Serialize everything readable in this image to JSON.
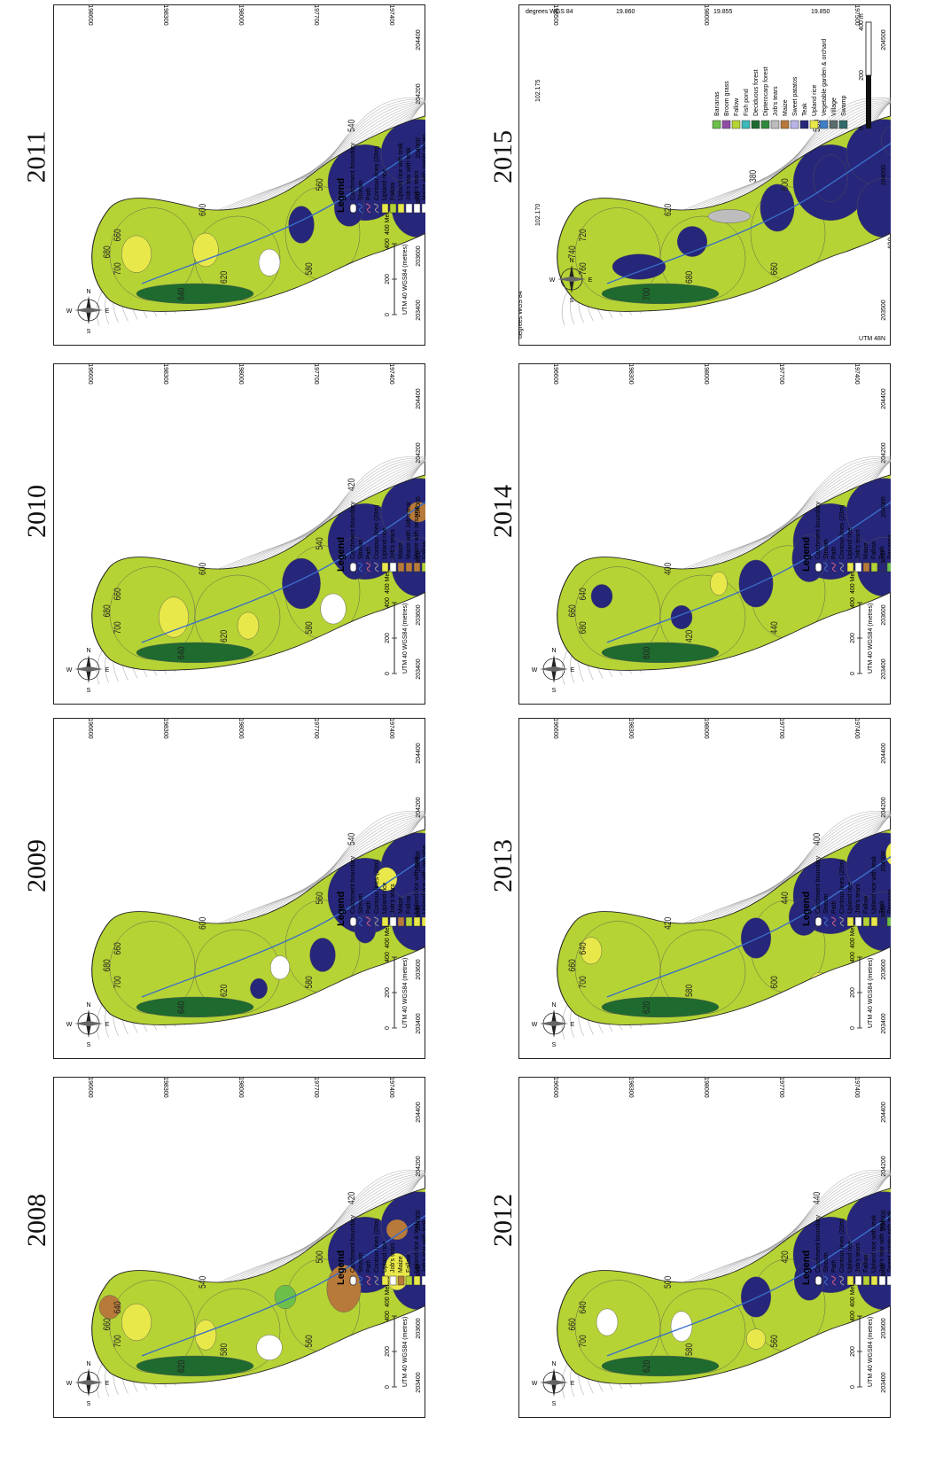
{
  "colors": {
    "fallow": "#b5d334",
    "upland_rice": "#e8e84a",
    "teak": "#26267a",
    "evergreen": "#1f6a2e",
    "dipterocarp": "#2e8a3a",
    "bananas": "#6cc04a",
    "orchard": "#f39c1f",
    "vegetable_garden": "#3f7fc8",
    "broom_grass": "#8e4ca3",
    "fish_pond": "#3cb8b8",
    "village": "#1f8a8a",
    "maize": "#b87a3a",
    "jobs_tears": "#ffffff",
    "swamp": "#2f6b6b",
    "contour": "#9a9a9a",
    "stream": "#3a6ec8",
    "path": "#d06080"
  },
  "panels": [
    {
      "id": "2008",
      "year": "2008",
      "scale_label": "400 Meters",
      "scale_ticks": [
        "0",
        "200",
        "400"
      ],
      "projection": "UTM 40 WGS84 (metres)",
      "compass": [
        "N",
        "E",
        "S",
        "W"
      ],
      "x_ticks": [
        "203400",
        "203600",
        "203800",
        "204000",
        "204200",
        "204400"
      ],
      "y_ticks": [
        "2196600",
        "2198300",
        "2198000",
        "2197700",
        "2197400"
      ],
      "contour_labels": [
        "700",
        "660",
        "640",
        "620",
        "580",
        "560",
        "540",
        "500",
        "420",
        "440",
        "400"
      ],
      "legend_title": "Legend",
      "legend": [
        {
          "label": "Catchment boundary",
          "sym": "boundary"
        },
        {
          "label": "Stream",
          "sym": "stream"
        },
        {
          "label": "Path",
          "sym": "path"
        },
        {
          "label": "Contour lines (20m)",
          "sym": "contour"
        },
        {
          "label": "Upland rice",
          "sym": "upland_rice"
        },
        {
          "label": "Job's tears",
          "sym": "jobs_tears"
        },
        {
          "label": "Maize",
          "sym": "maize"
        },
        {
          "label": "Fallow",
          "sym": "fallow"
        },
        {
          "label": "Upland rice & teak",
          "sym": "upland_rice"
        },
        {
          "label": "Job's tear with teak",
          "sym": "jobs_tears"
        },
        {
          "label": "Maize with teak",
          "sym": "maize"
        },
        {
          "label": "Teak",
          "sym": "teak"
        },
        {
          "label": "Bananas",
          "sym": "bananas"
        },
        {
          "label": "Vegetable garden",
          "sym": "vegetable_garden"
        },
        {
          "label": "Sweet potato",
          "sym": "broom_grass"
        },
        {
          "label": "Orchard",
          "sym": "orchard"
        },
        {
          "label": "Evergreen/deciduous forest",
          "sym": "evergreen"
        },
        {
          "label": "Dipterocarp forest",
          "sym": "dipterocarp"
        },
        {
          "label": "Fish pond",
          "sym": "fish_pond"
        },
        {
          "label": "Village",
          "sym": "village"
        }
      ]
    },
    {
      "id": "2009",
      "year": "2009",
      "scale_label": "400 Meters",
      "scale_ticks": [
        "0",
        "200",
        "400"
      ],
      "projection": "UTM 40 WGS84 (metres)",
      "compass": [
        "N",
        "E",
        "S",
        "W"
      ],
      "x_ticks": [
        "203400",
        "203600",
        "203800",
        "204000",
        "204200",
        "204400"
      ],
      "y_ticks": [
        "2196600",
        "2198300",
        "2198000",
        "2197700",
        "2197400"
      ],
      "contour_labels": [
        "700",
        "680",
        "660",
        "640",
        "620",
        "580",
        "600",
        "560",
        "540",
        "420",
        "440",
        "400"
      ],
      "legend_title": "Legend",
      "legend": [
        {
          "label": "Catchment boundary",
          "sym": "boundary"
        },
        {
          "label": "Stream",
          "sym": "stream"
        },
        {
          "label": "Path",
          "sym": "path"
        },
        {
          "label": "Contour lines (20m)",
          "sym": "contour"
        },
        {
          "label": "Upland rice",
          "sym": "upland_rice"
        },
        {
          "label": "Job's tears",
          "sym": "jobs_tears"
        },
        {
          "label": "Maize",
          "sym": "maize"
        },
        {
          "label": "Fallow",
          "sym": "fallow"
        },
        {
          "label": "Upland rice with teak",
          "sym": "upland_rice"
        },
        {
          "label": "Upland rice with jatropha",
          "sym": "upland_rice"
        },
        {
          "label": "Job's tear with teak",
          "sym": "jobs_tears"
        },
        {
          "label": "Maize with sweet potato",
          "sym": "jobs_tears"
        },
        {
          "label": "Teak",
          "sym": "teak"
        },
        {
          "label": "Bananas",
          "sym": "bananas"
        },
        {
          "label": "Vegetable garden",
          "sym": "vegetable_garden"
        },
        {
          "label": "Broom grass",
          "sym": "broom_grass"
        },
        {
          "label": "Orchard",
          "sym": "orchard"
        },
        {
          "label": "Evergreen/deciduous forest",
          "sym": "evergreen"
        },
        {
          "label": "Dipterocarp forest",
          "sym": "dipterocarp"
        },
        {
          "label": "Fish pond",
          "sym": "fish_pond"
        },
        {
          "label": "Village",
          "sym": "village"
        }
      ]
    },
    {
      "id": "2010",
      "year": "2010",
      "scale_label": "400 Meters",
      "scale_ticks": [
        "0",
        "200",
        "400"
      ],
      "projection": "UTM 40 WGS84 (metres)",
      "compass": [
        "N",
        "E",
        "S",
        "W"
      ],
      "x_ticks": [
        "203400",
        "203600",
        "203800",
        "204000",
        "204200",
        "204400"
      ],
      "y_ticks": [
        "2196600",
        "2198300",
        "2198000",
        "2197700",
        "2197400"
      ],
      "contour_labels": [
        "700",
        "680",
        "660",
        "640",
        "620",
        "580",
        "600",
        "540",
        "420",
        "440",
        "400"
      ],
      "legend_title": "Legend",
      "legend": [
        {
          "label": "Catchment boundary",
          "sym": "boundary"
        },
        {
          "label": "Stream",
          "sym": "stream"
        },
        {
          "label": "Path",
          "sym": "path"
        },
        {
          "label": "Contour lines (20m)",
          "sym": "contour"
        },
        {
          "label": "Upland rice",
          "sym": "upland_rice"
        },
        {
          "label": "Job's tears",
          "sym": "jobs_tears"
        },
        {
          "label": "Maize",
          "sym": "maize"
        },
        {
          "label": "Maize with Job's tear",
          "sym": "maize"
        },
        {
          "label": "Maize with sesame",
          "sym": "maize"
        },
        {
          "label": "Fallow",
          "sym": "fallow"
        },
        {
          "label": "Upland rice with teak",
          "sym": "upland_rice"
        },
        {
          "label": "Job's tear with teak",
          "sym": "jobs_tears"
        },
        {
          "label": "Maize with sweet potato",
          "sym": "jobs_tears"
        },
        {
          "label": "Teak",
          "sym": "teak"
        },
        {
          "label": "Bananas",
          "sym": "bananas"
        },
        {
          "label": "Vegetable garden",
          "sym": "vegetable_garden"
        },
        {
          "label": "Broom grass",
          "sym": "broom_grass"
        },
        {
          "label": "Orchard",
          "sym": "orchard"
        },
        {
          "label": "Evergreen/deciduous forest",
          "sym": "evergreen"
        },
        {
          "label": "Dipterocarp forest",
          "sym": "dipterocarp"
        },
        {
          "label": "Fish pond",
          "sym": "fish_pond"
        },
        {
          "label": "Village",
          "sym": "village"
        }
      ]
    },
    {
      "id": "2011",
      "year": "2011",
      "scale_label": "400 Meters",
      "scale_ticks": [
        "0",
        "200",
        "400"
      ],
      "projection": "UTM 40 WGS84 (metres)",
      "compass": [
        "N",
        "E",
        "S",
        "W"
      ],
      "x_ticks": [
        "203400",
        "203600",
        "203800",
        "204000",
        "204200",
        "204400"
      ],
      "y_ticks": [
        "2198600",
        "2198300",
        "2198000",
        "2197700",
        "2197400"
      ],
      "contour_labels": [
        "700",
        "680",
        "660",
        "640",
        "620",
        "580",
        "600",
        "560",
        "540",
        "420",
        "440",
        "400"
      ],
      "legend_title": "Legend",
      "legend": [
        {
          "label": "Catchment boundary",
          "sym": "boundary"
        },
        {
          "label": "Stream",
          "sym": "stream"
        },
        {
          "label": "Path",
          "sym": "path"
        },
        {
          "label": "Contour lines (20m)",
          "sym": "contour"
        },
        {
          "label": "Upland rice",
          "sym": "upland_rice"
        },
        {
          "label": "Fallow",
          "sym": "fallow"
        },
        {
          "label": "Upland rice with teak",
          "sym": "upland_rice"
        },
        {
          "label": "Job's tear with teak",
          "sym": "jobs_tears"
        },
        {
          "label": "Job's tears",
          "sym": "jobs_tears"
        },
        {
          "label": "Maize with sweet potato",
          "sym": "jobs_tears"
        },
        {
          "label": "Teak",
          "sym": "teak"
        },
        {
          "label": "Bananas",
          "sym": "bananas"
        },
        {
          "label": "Vegetable garden",
          "sym": "vegetable_garden"
        },
        {
          "label": "Broom grass",
          "sym": "broom_grass"
        },
        {
          "label": "Orchard",
          "sym": "orchard"
        },
        {
          "label": "Evergreen/deciduous forest",
          "sym": "evergreen"
        },
        {
          "label": "Dipterocarp forest",
          "sym": "dipterocarp"
        },
        {
          "label": "Fish pond",
          "sym": "fish_pond"
        },
        {
          "label": "Village",
          "sym": "village"
        }
      ]
    },
    {
      "id": "2012",
      "year": "2012",
      "scale_label": "400 Meters",
      "scale_ticks": [
        "0",
        "200",
        "400"
      ],
      "projection": "UTM 40 WGS84 (metres)",
      "compass": [
        "N",
        "E",
        "S",
        "W"
      ],
      "x_ticks": [
        "203400",
        "203600",
        "203800",
        "204000",
        "204200",
        "204400"
      ],
      "y_ticks": [
        "2196600",
        "2198300",
        "2198000",
        "2197700",
        "2197400"
      ],
      "contour_labels": [
        "700",
        "660",
        "640",
        "620",
        "580",
        "560",
        "500",
        "420",
        "440",
        "400"
      ],
      "legend_title": "Legend",
      "legend": [
        {
          "label": "Catchment boundary",
          "sym": "boundary"
        },
        {
          "label": "Stream",
          "sym": "stream"
        },
        {
          "label": "Path",
          "sym": "path"
        },
        {
          "label": "Contour lines (20m)",
          "sym": "contour"
        },
        {
          "label": "Upland rice",
          "sym": "upland_rice"
        },
        {
          "label": "Job's tears",
          "sym": "jobs_tears"
        },
        {
          "label": "Fallow",
          "sym": "fallow"
        },
        {
          "label": "Upland rice with teak",
          "sym": "upland_rice"
        },
        {
          "label": "Job's tear with teak",
          "sym": "jobs_tears"
        },
        {
          "label": "Sweet potato with teak",
          "sym": "jobs_tears"
        },
        {
          "label": "Teak",
          "sym": "teak"
        },
        {
          "label": "Bananas",
          "sym": "bananas"
        },
        {
          "label": "Broom grass",
          "sym": "broom_grass"
        },
        {
          "label": "Vegetable garden",
          "sym": "vegetable_garden"
        },
        {
          "label": "Sweet potato",
          "sym": "bananas"
        },
        {
          "label": "Broom grass",
          "sym": "broom_grass"
        },
        {
          "label": "Evergreen/deciduous forest",
          "sym": "evergreen"
        },
        {
          "label": "Dipterocarp forest",
          "sym": "dipterocarp"
        },
        {
          "label": "Fish pond",
          "sym": "fish_pond"
        },
        {
          "label": "Village",
          "sym": "village"
        }
      ]
    },
    {
      "id": "2013",
      "year": "2013",
      "scale_label": "400 Meters",
      "scale_ticks": [
        "0",
        "200",
        "400"
      ],
      "projection": "UTM 40 WGS84 (metres)",
      "compass": [
        "N",
        "E",
        "S",
        "W"
      ],
      "x_ticks": [
        "203400",
        "203600",
        "203800",
        "204000",
        "204200",
        "204400"
      ],
      "y_ticks": [
        "2196600",
        "2198300",
        "2198000",
        "2197700",
        "2197400"
      ],
      "contour_labels": [
        "700",
        "660",
        "640",
        "620",
        "580",
        "600",
        "420",
        "440",
        "400"
      ],
      "legend_title": "Legend",
      "legend": [
        {
          "label": "Catchment boundary",
          "sym": "boundary"
        },
        {
          "label": "Stream",
          "sym": "stream"
        },
        {
          "label": "Path",
          "sym": "path"
        },
        {
          "label": "Contour lines (20m)",
          "sym": "contour"
        },
        {
          "label": "Upland rice",
          "sym": "upland_rice"
        },
        {
          "label": "Job's tears",
          "sym": "jobs_tears"
        },
        {
          "label": "Fallow",
          "sym": "fallow"
        },
        {
          "label": "Upland rice with teak",
          "sym": "upland_rice"
        },
        {
          "label": "Teak",
          "sym": "teak"
        },
        {
          "label": "Bananas",
          "sym": "bananas"
        },
        {
          "label": "Broom grass",
          "sym": "broom_grass"
        },
        {
          "label": "Maize with sweet potatos",
          "sym": "jobs_tears"
        },
        {
          "label": "Vegetable garden with orchard",
          "sym": "vegetable_garden"
        },
        {
          "label": "Evergreen/deciduous forest",
          "sym": "evergreen"
        },
        {
          "label": "Dipterocarp forest",
          "sym": "dipterocarp"
        },
        {
          "label": "Fish pond",
          "sym": "fish_pond"
        },
        {
          "label": "Village",
          "sym": "village"
        }
      ]
    },
    {
      "id": "2014",
      "year": "2014",
      "scale_label": "400 Meters",
      "scale_ticks": [
        "0",
        "200",
        "400"
      ],
      "projection": "UTM 40 WGS84 (metres)",
      "compass": [
        "N",
        "E",
        "S",
        "W"
      ],
      "x_ticks": [
        "203400",
        "203600",
        "203800",
        "204000",
        "204200",
        "204400"
      ],
      "y_ticks": [
        "2196600",
        "2198300",
        "2198000",
        "2197700",
        "2197400"
      ],
      "contour_labels": [
        "680",
        "660",
        "640",
        "600",
        "420",
        "440",
        "400"
      ],
      "legend_title": "Legend",
      "legend": [
        {
          "label": "Catchment boundary",
          "sym": "boundary"
        },
        {
          "label": "Stream",
          "sym": "stream"
        },
        {
          "label": "Path",
          "sym": "path"
        },
        {
          "label": "Contour lines (20m)",
          "sym": "contour"
        },
        {
          "label": "Upland rice",
          "sym": "upland_rice"
        },
        {
          "label": "Job's tears",
          "sym": "jobs_tears"
        },
        {
          "label": "Maize",
          "sym": "maize"
        },
        {
          "label": "Fallow",
          "sym": "fallow"
        },
        {
          "label": "Teak",
          "sym": "teak"
        },
        {
          "label": "Bananas",
          "sym": "bananas"
        },
        {
          "label": "Broom grass",
          "sym": "broom_grass"
        },
        {
          "label": "Sweet potatos",
          "sym": "bananas"
        },
        {
          "label": "Vegetable garden & orchard",
          "sym": "vegetable_garden"
        },
        {
          "label": "Evergreen/deciduous forest",
          "sym": "evergreen"
        },
        {
          "label": "Dipterocarp forest",
          "sym": "dipterocarp"
        },
        {
          "label": "Fish pond",
          "sym": "fish_pond"
        },
        {
          "label": "Village",
          "sym": "village"
        }
      ]
    },
    {
      "id": "2015",
      "year": "2015",
      "frame_top_left": "degrees WGS 84",
      "frame_top_ticks": [
        "19.860",
        "19.855",
        "19.850"
      ],
      "frame_bottom_left": "degrees WGS 84",
      "frame_bottom_right": "UTM 48N",
      "frame_left_ticks": [
        "102.175",
        "102.170"
      ],
      "utm_top": "UTM 48N",
      "y_ticks": [
        "2198500",
        "2198000",
        "2197500"
      ],
      "x_ticks": [
        "203500",
        "204000",
        "204500"
      ],
      "scale_ticks": [
        "0",
        "200",
        "400 m"
      ],
      "contour_labels": [
        "760",
        "740",
        "720",
        "700",
        "680",
        "660",
        "620",
        "600",
        "580",
        "560",
        "540",
        "520",
        "400",
        "380"
      ],
      "legend": [
        {
          "label": "Bananas",
          "sym": "bananas"
        },
        {
          "label": "Broom grass",
          "sym": "broom_grass"
        },
        {
          "label": "Fallow",
          "sym": "fallow"
        },
        {
          "label": "Fish pond",
          "sym": "fish_pond"
        },
        {
          "label": "Deciduous forest",
          "sym": "evergreen"
        },
        {
          "label": "Dipterocarp forest",
          "sym": "dipterocarp"
        },
        {
          "label": "Job's tears",
          "sym": "jobs_tears_grey"
        },
        {
          "label": "Maize",
          "sym": "maize"
        },
        {
          "label": "Sweet patatos",
          "sym": "sweet_potato"
        },
        {
          "label": "Teak",
          "sym": "teak"
        },
        {
          "label": "Upland rice",
          "sym": "upland_rice"
        },
        {
          "label": "Vegetable garden & orchard",
          "sym": "vegetable_garden"
        },
        {
          "label": "Village",
          "sym": "village_grey"
        },
        {
          "label": "Swamp",
          "sym": "swamp"
        }
      ]
    }
  ]
}
